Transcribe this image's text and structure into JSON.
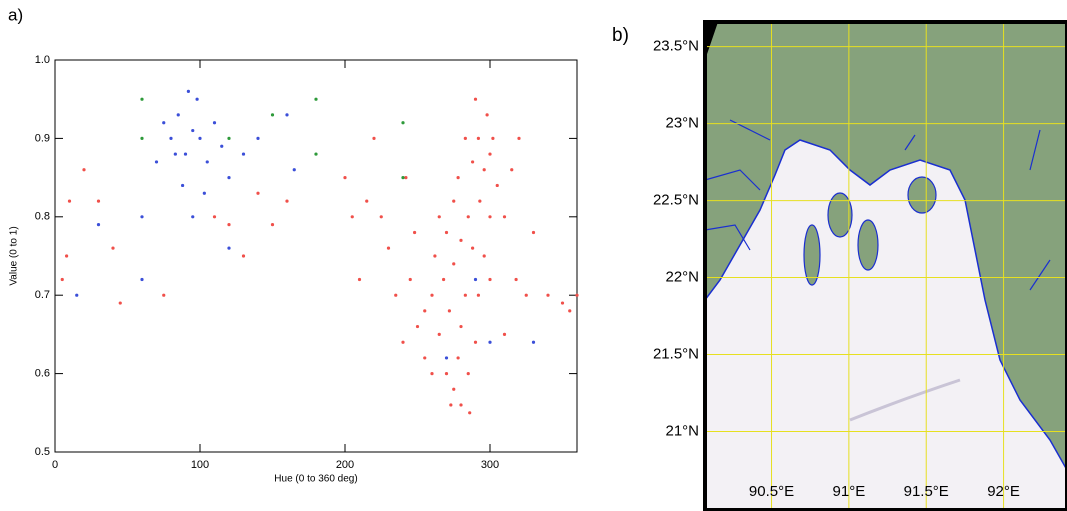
{
  "chart_data": [
    {
      "type": "scatter",
      "panel_label": "a)",
      "xlabel": "Hue (0 to 360 deg)",
      "ylabel": "Value (0 to 1)",
      "xlim": [
        0,
        360
      ],
      "ylim": [
        0.5,
        1.0
      ],
      "xticks": [
        0,
        100,
        200,
        300
      ],
      "yticks": [
        0.5,
        0.6,
        0.7,
        0.8,
        0.9,
        {
          "value": 1.0,
          "label": "1.0"
        }
      ],
      "series": [
        {
          "color": "#f0504a",
          "x": [
            270,
            275,
            280,
            278,
            285,
            265,
            272,
            280,
            290,
            268,
            275,
            283,
            292,
            260,
            255,
            250,
            262,
            270,
            280,
            288,
            296,
            300,
            265,
            275,
            285,
            293,
            300,
            278,
            288,
            296,
            283,
            292,
            300,
            305,
            310,
            245,
            240,
            235,
            230,
            225,
            215,
            210,
            205,
            220,
            200,
            310,
            318,
            325,
            330,
            340,
            350,
            315,
            320,
            160,
            150,
            140,
            130,
            120,
            110,
            75,
            45,
            40,
            30,
            20,
            10,
            8,
            5,
            360,
            355,
            260,
            286,
            273,
            255,
            248,
            242,
            302,
            298,
            290
          ],
          "y": [
            0.6,
            0.58,
            0.56,
            0.62,
            0.6,
            0.65,
            0.68,
            0.66,
            0.64,
            0.72,
            0.74,
            0.7,
            0.7,
            0.7,
            0.68,
            0.66,
            0.75,
            0.78,
            0.77,
            0.76,
            0.75,
            0.72,
            0.8,
            0.82,
            0.8,
            0.82,
            0.8,
            0.85,
            0.87,
            0.86,
            0.9,
            0.9,
            0.88,
            0.84,
            0.8,
            0.72,
            0.64,
            0.7,
            0.76,
            0.8,
            0.82,
            0.72,
            0.8,
            0.9,
            0.85,
            0.65,
            0.72,
            0.7,
            0.78,
            0.7,
            0.69,
            0.86,
            0.9,
            0.82,
            0.79,
            0.83,
            0.75,
            0.79,
            0.8,
            0.7,
            0.69,
            0.76,
            0.82,
            0.86,
            0.82,
            0.75,
            0.72,
            0.7,
            0.68,
            0.6,
            0.55,
            0.56,
            0.62,
            0.78,
            0.85,
            0.9,
            0.93,
            0.95
          ]
        },
        {
          "color": "#3b4fd8",
          "x": [
            60,
            70,
            80,
            85,
            90,
            95,
            100,
            105,
            110,
            115,
            88,
            98,
            75,
            120,
            130,
            140,
            160,
            165,
            95,
            103,
            30,
            15,
            60,
            120,
            300,
            330,
            270,
            290,
            92,
            83
          ],
          "y": [
            0.8,
            0.87,
            0.9,
            0.93,
            0.88,
            0.91,
            0.9,
            0.87,
            0.92,
            0.89,
            0.84,
            0.95,
            0.92,
            0.85,
            0.88,
            0.9,
            0.93,
            0.86,
            0.8,
            0.83,
            0.79,
            0.7,
            0.72,
            0.76,
            0.64,
            0.64,
            0.62,
            0.72,
            0.96,
            0.88
          ]
        },
        {
          "color": "#2e9a3a",
          "x": [
            60,
            60,
            120,
            180,
            180,
            240,
            240,
            150
          ],
          "y": [
            0.9,
            0.95,
            0.9,
            0.88,
            0.95,
            0.85,
            0.92,
            0.93
          ]
        }
      ]
    },
    {
      "type": "map",
      "panel_label": "b)",
      "grid": true,
      "grid_color": "#e6e020",
      "xlim": [
        90.07,
        92.41
      ],
      "ylim": [
        20.49,
        23.66
      ],
      "xticks": [
        {
          "value": 90.5,
          "label": "90.5°E"
        },
        {
          "value": 91,
          "label": "91°E"
        },
        {
          "value": 91.5,
          "label": "91.5°E"
        },
        {
          "value": 92,
          "label": "92°E"
        }
      ],
      "yticks": [
        {
          "value": 21,
          "label": "21°N"
        },
        {
          "value": 21.5,
          "label": "21.5°N"
        },
        {
          "value": 22,
          "label": "22°N"
        },
        {
          "value": 22.5,
          "label": "22.5°N"
        },
        {
          "value": 23,
          "label": "23°N"
        },
        {
          "value": 23.5,
          "label": "23.5°N"
        }
      ]
    }
  ]
}
